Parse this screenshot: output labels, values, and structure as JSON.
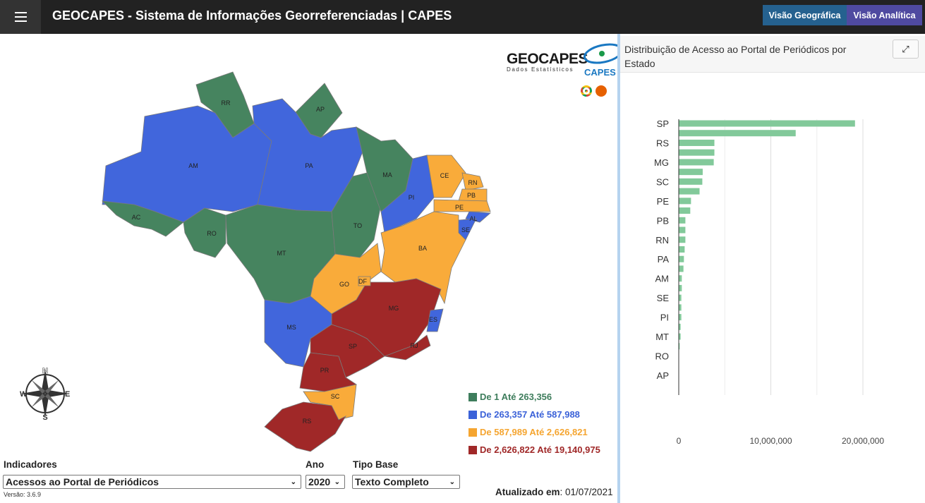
{
  "header": {
    "title": "GEOCAPES - Sistema de Informações Georreferenciadas | CAPES",
    "menu_icon": "hamburger-icon",
    "btn_geo": "Visão Geográfica",
    "btn_analitica": "Visão Analítica"
  },
  "logo": {
    "name": "GEOCAPES",
    "subtitle": "Dados Estatísticos",
    "capes": "CAPES"
  },
  "colors": {
    "green": "#46845f",
    "blue": "#4166dc",
    "orange": "#f9ab3a",
    "red": "#a02828",
    "bar": "#82c99a"
  },
  "legend": [
    {
      "label": "De 1 Até 263,356",
      "color": "#3e7d5c"
    },
    {
      "label": "De 263,357 Até 587,988",
      "color": "#3b62d8"
    },
    {
      "label": "De 587,989 Até 2,626,821",
      "color": "#f5a530"
    },
    {
      "label": "De 2,626,822 Até 19,140,975",
      "color": "#a02828"
    }
  ],
  "map": {
    "states": [
      {
        "uf": "RR",
        "class": "green"
      },
      {
        "uf": "AP",
        "class": "green"
      },
      {
        "uf": "AM",
        "class": "blue"
      },
      {
        "uf": "AC",
        "class": "green"
      },
      {
        "uf": "RO",
        "class": "green"
      },
      {
        "uf": "PA",
        "class": "blue"
      },
      {
        "uf": "MT",
        "class": "green"
      },
      {
        "uf": "TO",
        "class": "green"
      },
      {
        "uf": "MA",
        "class": "green"
      },
      {
        "uf": "PI",
        "class": "blue"
      },
      {
        "uf": "CE",
        "class": "orange"
      },
      {
        "uf": "RN",
        "class": "orange"
      },
      {
        "uf": "PB",
        "class": "orange"
      },
      {
        "uf": "PE",
        "class": "orange"
      },
      {
        "uf": "AL",
        "class": "blue"
      },
      {
        "uf": "SE",
        "class": "blue"
      },
      {
        "uf": "BA",
        "class": "orange"
      },
      {
        "uf": "GO",
        "class": "orange"
      },
      {
        "uf": "MG",
        "class": "red"
      },
      {
        "uf": "ES",
        "class": "blue"
      },
      {
        "uf": "RJ",
        "class": "red"
      },
      {
        "uf": "MS",
        "class": "blue"
      },
      {
        "uf": "SP",
        "class": "red"
      },
      {
        "uf": "PR",
        "class": "red"
      },
      {
        "uf": "SC",
        "class": "orange"
      },
      {
        "uf": "RS",
        "class": "red"
      },
      {
        "uf": "DF",
        "class": "orange"
      }
    ]
  },
  "controls": {
    "indicadores_label": "Indicadores",
    "indicadores_value": "Acessos ao Portal de Periódicos",
    "ano_label": "Ano",
    "ano_value": "2020",
    "tipo_label": "Tipo Base",
    "tipo_value": "Texto Completo",
    "versao": "Versão: 3.6.9",
    "atualizado_label": "Atualizado em",
    "atualizado_value": ": 01/07/2021"
  },
  "panel": {
    "title": "Distribuição de Acesso ao Portal de Periódicos por Estado",
    "expand_icon": "expand-icon"
  },
  "chart_data": {
    "type": "bar",
    "orientation": "horizontal",
    "categories": [
      "SP",
      "",
      "RS",
      "",
      "MG",
      "",
      "SC",
      "",
      "PE",
      "",
      "PB",
      "",
      "RN",
      "",
      "PA",
      "",
      "AM",
      "",
      "SE",
      "",
      "PI",
      "",
      "MT",
      "",
      "RO",
      "",
      "AP"
    ],
    "values": [
      19140975,
      12700000,
      3870000,
      3870000,
      3800000,
      2600000,
      2560000,
      2260000,
      1330000,
      1250000,
      720000,
      720000,
      720000,
      640000,
      560000,
      510000,
      330000,
      330000,
      280000,
      280000,
      280000,
      200000,
      200000,
      100000,
      30000,
      20000,
      10000
    ],
    "xticks": [
      "0",
      "10,000,000",
      "20,000,000"
    ],
    "xlim": [
      0,
      20000000
    ],
    "grid": true
  }
}
